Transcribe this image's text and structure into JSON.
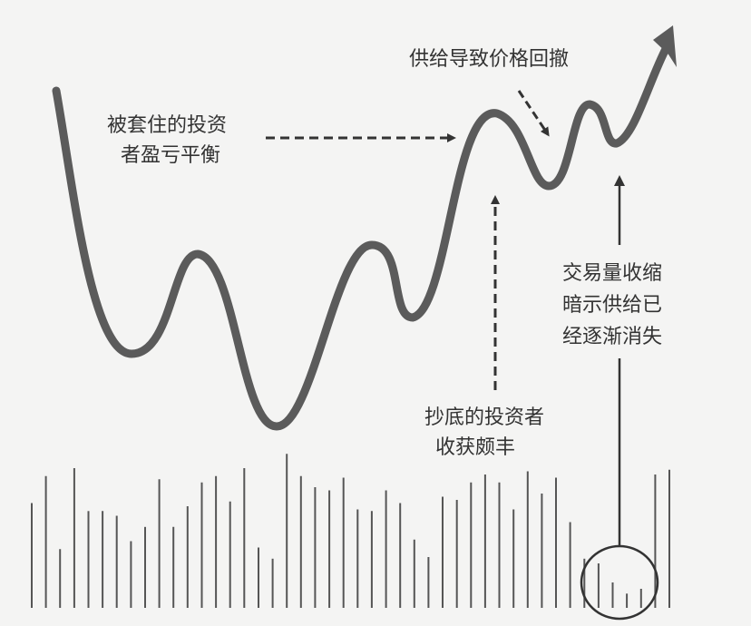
{
  "colors": {
    "background": "#f4f4f3",
    "price_line": "#5b5b5b",
    "annotation": "#333333",
    "volume_bar": "#555555"
  },
  "annotations": {
    "trapped_investors": [
      "被套住的投资",
      "者盈亏平衡"
    ],
    "supply_pullback": [
      "供给导致价格回撤"
    ],
    "bottom_buyers": [
      "抄底的投资者",
      "收获颇丰"
    ],
    "volume_shrink": [
      "交易量收缩",
      "暗示供给已",
      "经逐渐消失"
    ]
  },
  "volume": {
    "levels": [
      0.66,
      0.83,
      0.37,
      0.88,
      0.61,
      0.61,
      0.58,
      0.42,
      0.51,
      0.81,
      0.51,
      0.64,
      0.79,
      0.83,
      0.67,
      0.88,
      0.38,
      0.31,
      0.97,
      0.83,
      0.76,
      0.74,
      0.82,
      0.62,
      0.61,
      0.74,
      0.66,
      0.43,
      0.32,
      0.7,
      0.68,
      0.79,
      0.84,
      0.79,
      0.62,
      0.86,
      0.72,
      0.82,
      0.54,
      0.31,
      0.28,
      0.16,
      0.09,
      0.12,
      0.84,
      0.87
    ],
    "highlight_circle": true
  }
}
